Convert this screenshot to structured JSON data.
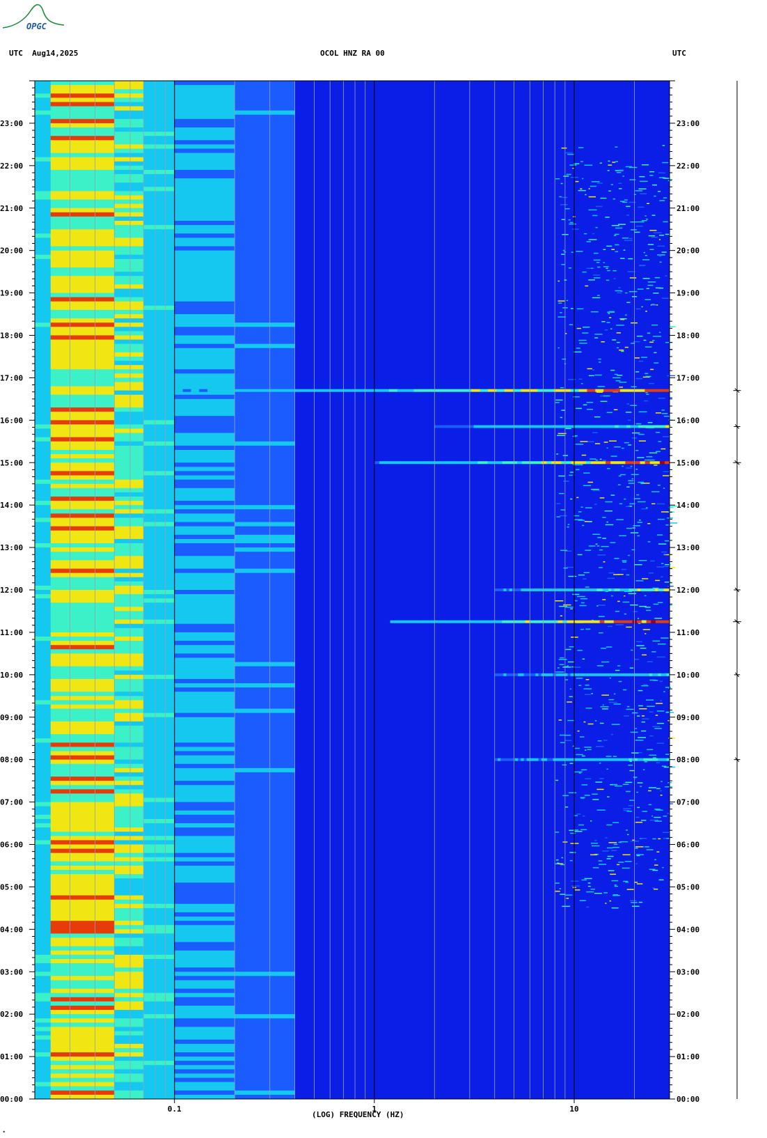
{
  "header": {
    "logo_text": "OPGC",
    "left_label": "UTC  Aug14,2025",
    "center_label": "OCOL HNZ RA 00",
    "right_label": "UTC"
  },
  "chart_data": {
    "type": "heatmap",
    "title": "OCOL HNZ RA 00",
    "xlabel": "(LOG) FREQUENCY (HZ)",
    "ylabel": "UTC",
    "date": "Aug14,2025",
    "x_scale": "log",
    "xlim_hz": [
      0.02,
      30
    ],
    "x_tick_labels": [
      {
        "hz": 0.1,
        "label": "0.1"
      },
      {
        "hz": 1,
        "label": "1"
      },
      {
        "hz": 10,
        "label": "10"
      }
    ],
    "ylim_hours": [
      0,
      24
    ],
    "y_tick_labels": [
      "00:00",
      "01:00",
      "02:00",
      "03:00",
      "04:00",
      "05:00",
      "06:00",
      "07:00",
      "08:00",
      "09:00",
      "10:00",
      "11:00",
      "12:00",
      "13:00",
      "14:00",
      "15:00",
      "16:00",
      "17:00",
      "18:00",
      "19:00",
      "20:00",
      "21:00",
      "22:00",
      "23:00"
    ],
    "colors": {
      "low": "#0a1ee6",
      "mid_low": "#1a5cff",
      "mid": "#14c8f0",
      "mid_high": "#3cf0c8",
      "high": "#f0e614",
      "very_high": "#e63c0a",
      "peak": "#a00000"
    },
    "energy_bands_hz": [
      {
        "from": 0.02,
        "to": 0.024,
        "level": 0.45
      },
      {
        "from": 0.024,
        "to": 0.05,
        "level": 0.72
      },
      {
        "from": 0.05,
        "to": 0.07,
        "level": 0.62
      },
      {
        "from": 0.07,
        "to": 0.1,
        "level": 0.45
      },
      {
        "from": 0.1,
        "to": 0.2,
        "level": 0.33
      },
      {
        "from": 0.2,
        "to": 0.4,
        "level": 0.22
      },
      {
        "from": 0.4,
        "to": 30,
        "level": 0.08
      }
    ],
    "events": [
      {
        "hour": 11.25,
        "fmin_hz": 1.2,
        "fmax_hz": 30,
        "level": 0.95
      },
      {
        "hour": 15.0,
        "fmin_hz": 1.0,
        "fmax_hz": 30,
        "level": 0.9
      },
      {
        "hour": 16.7,
        "fmin_hz": 0.1,
        "fmax_hz": 30,
        "level": 0.85
      },
      {
        "hour": 12.0,
        "fmin_hz": 4.0,
        "fmax_hz": 30,
        "level": 0.7
      },
      {
        "hour": 15.85,
        "fmin_hz": 2.0,
        "fmax_hz": 30,
        "level": 0.65
      },
      {
        "hour": 8.0,
        "fmin_hz": 4.0,
        "fmax_hz": 30,
        "level": 0.6
      },
      {
        "hour": 10.0,
        "fmin_hz": 4.0,
        "fmax_hz": 30,
        "level": 0.55
      }
    ]
  }
}
